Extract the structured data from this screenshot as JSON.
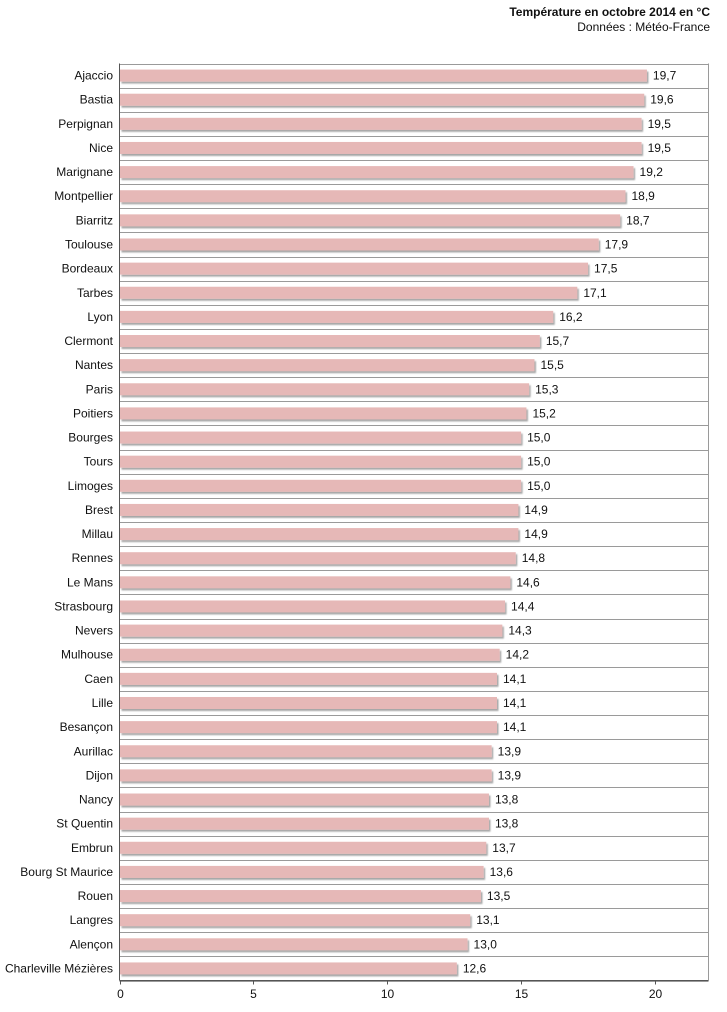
{
  "title": "Température en octobre 2014 en °C",
  "source": "Données : Météo-France",
  "chart_data": {
    "type": "bar",
    "orientation": "horizontal",
    "title": "Température en octobre 2014 en °C",
    "subtitle": "Données : Météo-France",
    "xlabel": "",
    "ylabel": "",
    "xlim": [
      0,
      22
    ],
    "x_ticks": [
      0,
      5,
      10,
      15,
      20
    ],
    "grid": true,
    "bar_color": "#e6b8b7",
    "value_labels": [
      "19,7",
      "19,6",
      "19,5",
      "19,5",
      "19,2",
      "18,9",
      "18,7",
      "17,9",
      "17,5",
      "17,1",
      "16,2",
      "15,7",
      "15,5",
      "15,3",
      "15,2",
      "15,0",
      "15,0",
      "15,0",
      "14,9",
      "14,9",
      "14,8",
      "14,6",
      "14,4",
      "14,3",
      "14,2",
      "14,1",
      "14,1",
      "14,1",
      "13,9",
      "13,9",
      "13,8",
      "13,8",
      "13,7",
      "13,6",
      "13,5",
      "13,1",
      "13,0",
      "12,6"
    ],
    "categories": [
      "Ajaccio",
      "Bastia",
      "Perpignan",
      "Nice",
      "Marignane",
      "Montpellier",
      "Biarritz",
      "Toulouse",
      "Bordeaux",
      "Tarbes",
      "Lyon",
      "Clermont",
      "Nantes",
      "Paris",
      "Poitiers",
      "Bourges",
      "Tours",
      "Limoges",
      "Brest",
      "Millau",
      "Rennes",
      "Le Mans",
      "Strasbourg",
      "Nevers",
      "Mulhouse",
      "Caen",
      "Lille",
      "Besançon",
      "Aurillac",
      "Dijon",
      "Nancy",
      "St Quentin",
      "Embrun",
      "Bourg St Maurice",
      "Rouen",
      "Langres",
      "Alençon",
      "Charleville Mézières"
    ],
    "values": [
      19.7,
      19.6,
      19.5,
      19.5,
      19.2,
      18.9,
      18.7,
      17.9,
      17.5,
      17.1,
      16.2,
      15.7,
      15.5,
      15.3,
      15.2,
      15.0,
      15.0,
      15.0,
      14.9,
      14.9,
      14.8,
      14.6,
      14.4,
      14.3,
      14.2,
      14.1,
      14.1,
      14.1,
      13.9,
      13.9,
      13.8,
      13.8,
      13.7,
      13.6,
      13.5,
      13.1,
      13.0,
      12.6
    ]
  }
}
